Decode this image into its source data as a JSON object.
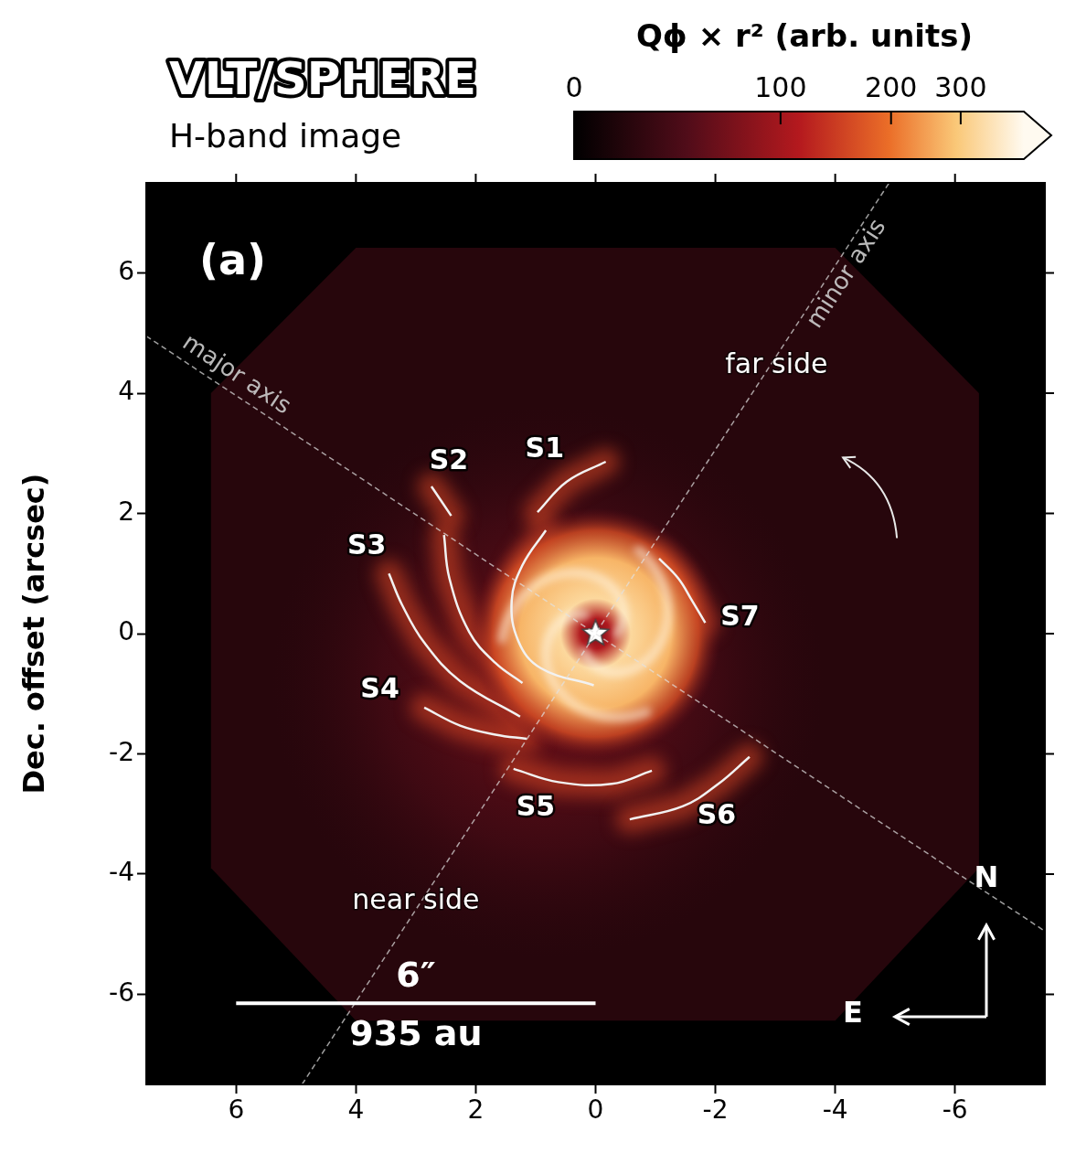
{
  "chart_data": {
    "type": "image",
    "title": "VLT/SPHERE",
    "subtitle": "H-band image",
    "panel_label": "(a)",
    "y_label": "Dec. offset (arcsec)",
    "xlim": [
      7.5,
      -7.5
    ],
    "ylim": [
      -7.5,
      7.5
    ],
    "xticks": [
      6,
      4,
      2,
      0,
      -2,
      -4,
      -6
    ],
    "yticks": [
      -6,
      -4,
      -2,
      0,
      2,
      4,
      6
    ],
    "colorbar": {
      "label": "Qϕ × r² (arb. units)",
      "range": [
        0,
        430
      ],
      "ticks": [
        0,
        100,
        200,
        300
      ]
    },
    "star": [
      0,
      0
    ],
    "axis_lines": [
      {
        "label": "major axis",
        "label_at": [
          6.0,
          4.3
        ],
        "points": [
          [
            7.5,
            4.95
          ],
          [
            -7.5,
            -4.95
          ]
        ]
      },
      {
        "label": "minor axis",
        "label_at": [
          -4.2,
          5.98
        ],
        "points": [
          [
            4.9,
            -7.5
          ],
          [
            -4.9,
            7.5
          ]
        ]
      }
    ],
    "spirals": [
      {
        "label": "S1",
        "label_at": [
          0.85,
          3.05
        ],
        "segments": [
          [
            [
              0.97,
              2.02
            ],
            [
              0.48,
              2.53
            ],
            [
              -0.17,
              2.86
            ]
          ],
          [
            [
              0.83,
              1.72
            ],
            [
              1.22,
              1.14
            ],
            [
              1.4,
              0.55
            ],
            [
              1.29,
              -0.12
            ],
            [
              0.92,
              -0.57
            ],
            [
              0.03,
              -0.86
            ]
          ]
        ]
      },
      {
        "label": "S2",
        "label_at": [
          2.45,
          2.86
        ],
        "segments": [
          [
            [
              2.74,
              2.45
            ],
            [
              2.41,
              1.96
            ]
          ],
          [
            [
              2.53,
              1.64
            ],
            [
              2.44,
              0.92
            ],
            [
              2.11,
              0.03
            ],
            [
              1.67,
              -0.49
            ],
            [
              1.22,
              -0.82
            ]
          ]
        ]
      },
      {
        "label": "S3",
        "label_at": [
          3.82,
          1.44
        ],
        "segments": [
          [
            [
              3.45,
              1.0
            ],
            [
              3.23,
              0.48
            ],
            [
              2.86,
              -0.15
            ],
            [
              2.26,
              -0.79
            ],
            [
              1.26,
              -1.38
            ]
          ]
        ]
      },
      {
        "label": "S4",
        "label_at": [
          3.6,
          -0.94
        ],
        "segments": [
          [
            [
              2.86,
              -1.23
            ],
            [
              2.26,
              -1.53
            ],
            [
              1.67,
              -1.68
            ],
            [
              1.15,
              -1.75
            ]
          ]
        ]
      },
      {
        "label": "S5",
        "label_at": [
          1.0,
          -2.91
        ],
        "segments": [
          [
            [
              1.37,
              -2.25
            ],
            [
              0.62,
              -2.47
            ],
            [
              -0.27,
              -2.5
            ],
            [
              -0.94,
              -2.28
            ]
          ]
        ]
      },
      {
        "label": "S6",
        "label_at": [
          -2.02,
          -3.05
        ],
        "segments": [
          [
            [
              -0.57,
              -3.09
            ],
            [
              -1.46,
              -2.87
            ],
            [
              -2.05,
              -2.5
            ],
            [
              -2.57,
              -2.05
            ]
          ]
        ]
      },
      {
        "label": "S7",
        "label_at": [
          -2.41,
          0.25
        ],
        "segments": [
          [
            [
              -1.06,
              1.25
            ],
            [
              -1.38,
              0.92
            ],
            [
              -1.61,
              0.55
            ],
            [
              -1.83,
              0.18
            ]
          ]
        ]
      }
    ],
    "annotations": [
      {
        "text": "far side",
        "at": [
          -3.02,
          4.46
        ]
      },
      {
        "text": "near side",
        "at": [
          3.0,
          -4.46
        ]
      }
    ],
    "scale_bar": {
      "from": 6,
      "to": 0,
      "y": -6.15,
      "label": "6″",
      "sublabel": "935 au"
    },
    "compass": {
      "north": "N",
      "east": "E"
    }
  }
}
